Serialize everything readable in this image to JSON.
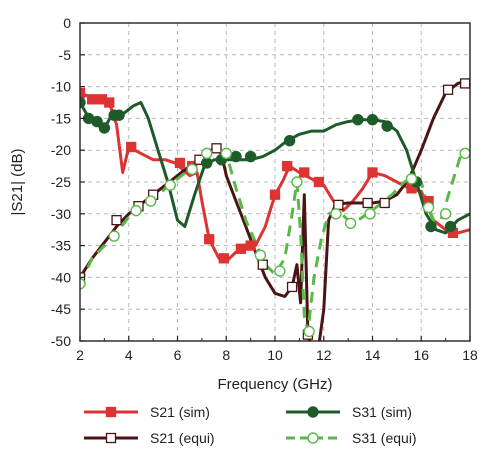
{
  "chart_data": {
    "type": "line",
    "title": "",
    "xlabel": "Frequency (GHz)",
    "ylabel": "|S21| (dB)",
    "xlim": [
      2,
      18
    ],
    "ylim": [
      -50,
      0
    ],
    "xticks": [
      2,
      4,
      6,
      8,
      10,
      12,
      14,
      16,
      18
    ],
    "yticks": [
      0,
      -5,
      -10,
      -15,
      -20,
      -25,
      -30,
      -35,
      -40,
      -45,
      -50
    ],
    "grid": true,
    "legend_position": "bottom",
    "series": [
      {
        "name": "S21 (sim)",
        "color": "#dd3333",
        "line": "solid",
        "marker": "square-filled",
        "points": [
          [
            2,
            -11
          ],
          [
            2.4,
            -11.6
          ],
          [
            2.8,
            -12
          ],
          [
            3.2,
            -12.5
          ],
          [
            3.5,
            -16
          ],
          [
            3.75,
            -23.5
          ],
          [
            4,
            -19.5
          ],
          [
            4.5,
            -20.5
          ],
          [
            5,
            -21.5
          ],
          [
            5.5,
            -21.5
          ],
          [
            5.9,
            -22
          ],
          [
            6.2,
            -23
          ],
          [
            6.5,
            -24
          ],
          [
            6.8,
            -23.5
          ],
          [
            7.0,
            -28
          ],
          [
            7.3,
            -34
          ],
          [
            7.7,
            -37
          ],
          [
            8.0,
            -37.5
          ],
          [
            8.4,
            -36
          ],
          [
            8.8,
            -35.5
          ],
          [
            9.2,
            -35
          ],
          [
            9.6,
            -32
          ],
          [
            10.0,
            -27
          ],
          [
            10.3,
            -25
          ],
          [
            10.6,
            -22.5
          ],
          [
            11.0,
            -23.5
          ],
          [
            11.5,
            -24.5
          ],
          [
            12.0,
            -25.5
          ],
          [
            12.4,
            -28
          ],
          [
            12.8,
            -29.5
          ],
          [
            13.2,
            -28
          ],
          [
            13.6,
            -26
          ],
          [
            14.0,
            -23.5
          ],
          [
            14.5,
            -24
          ],
          [
            15.0,
            -25
          ],
          [
            15.5,
            -26
          ],
          [
            16.0,
            -26.5
          ],
          [
            16.5,
            -31
          ],
          [
            17.0,
            -32.5
          ],
          [
            17.5,
            -33
          ],
          [
            18,
            -32.5
          ]
        ],
        "marker_points": [
          [
            2,
            -11
          ],
          [
            2.5,
            -12
          ],
          [
            2.9,
            -12
          ],
          [
            3.2,
            -12.5
          ],
          [
            4.1,
            -19.5
          ],
          [
            6.1,
            -22
          ],
          [
            6.6,
            -22.5
          ],
          [
            7.3,
            -34
          ],
          [
            7.9,
            -37
          ],
          [
            8.6,
            -35.5
          ],
          [
            9.0,
            -35
          ],
          [
            10.0,
            -27
          ],
          [
            10.5,
            -22.5
          ],
          [
            11.2,
            -23.5
          ],
          [
            11.8,
            -25
          ],
          [
            14.0,
            -23.5
          ],
          [
            15.6,
            -26
          ],
          [
            16.3,
            -28
          ],
          [
            17.3,
            -33
          ]
        ]
      },
      {
        "name": "S21 (equi)",
        "color": "#4a1414",
        "line": "solid",
        "marker": "square-open",
        "points": [
          [
            2,
            -40
          ],
          [
            2.5,
            -37
          ],
          [
            3,
            -34.5
          ],
          [
            3.5,
            -32
          ],
          [
            4,
            -30
          ],
          [
            4.5,
            -28.5
          ],
          [
            5,
            -27
          ],
          [
            5.5,
            -25.5
          ],
          [
            6,
            -24
          ],
          [
            6.5,
            -22.5
          ],
          [
            7,
            -21
          ],
          [
            7.5,
            -19.7
          ],
          [
            7.8,
            -20.5
          ],
          [
            8.0,
            -24
          ],
          [
            8.4,
            -28
          ],
          [
            8.8,
            -32
          ],
          [
            9.2,
            -36
          ],
          [
            9.6,
            -40
          ],
          [
            10.0,
            -42.5
          ],
          [
            10.4,
            -43
          ],
          [
            10.7,
            -41.5
          ],
          [
            10.9,
            -38
          ],
          [
            11.05,
            -44
          ],
          [
            11.2,
            -27
          ],
          [
            11.35,
            -49
          ],
          [
            11.5,
            -51
          ],
          [
            11.75,
            -52
          ],
          [
            12.0,
            -45
          ],
          [
            12.2,
            -31
          ],
          [
            12.5,
            -28.5
          ],
          [
            13,
            -28.3
          ],
          [
            13.5,
            -28.3
          ],
          [
            14,
            -28.3
          ],
          [
            14.5,
            -28
          ],
          [
            15,
            -27
          ],
          [
            15.5,
            -24.5
          ],
          [
            16,
            -20
          ],
          [
            16.5,
            -15
          ],
          [
            17,
            -11
          ],
          [
            17.5,
            -9.5
          ],
          [
            18,
            -9
          ]
        ],
        "marker_points": [
          [
            2,
            -40
          ],
          [
            3.5,
            -31
          ],
          [
            4.4,
            -28.8
          ],
          [
            5,
            -27
          ],
          [
            6.9,
            -21.5
          ],
          [
            7.6,
            -19.7
          ],
          [
            9.5,
            -38
          ],
          [
            10.7,
            -41.5
          ],
          [
            11.35,
            -49
          ],
          [
            12.6,
            -28.6
          ],
          [
            13.8,
            -28.3
          ],
          [
            14.5,
            -28.3
          ],
          [
            17.1,
            -10.5
          ],
          [
            17.8,
            -9.5
          ]
        ]
      },
      {
        "name": "S31 (sim)",
        "color": "#1f5a2a",
        "line": "solid",
        "marker": "circle-filled",
        "points": [
          [
            2,
            -12.5
          ],
          [
            2.3,
            -14.5
          ],
          [
            2.7,
            -15.5
          ],
          [
            3.0,
            -16.5
          ],
          [
            3.3,
            -14.5
          ],
          [
            3.7,
            -14.5
          ],
          [
            4.2,
            -13
          ],
          [
            4.5,
            -12.5
          ],
          [
            4.8,
            -15
          ],
          [
            5.2,
            -20
          ],
          [
            5.6,
            -25
          ],
          [
            6.0,
            -31
          ],
          [
            6.3,
            -32
          ],
          [
            6.7,
            -27
          ],
          [
            7.1,
            -22.5
          ],
          [
            7.5,
            -21.5
          ],
          [
            8.0,
            -21.5
          ],
          [
            8.5,
            -21.5
          ],
          [
            9.0,
            -21.5
          ],
          [
            9.5,
            -21
          ],
          [
            10.0,
            -20
          ],
          [
            10.5,
            -18.5
          ],
          [
            11.0,
            -17.5
          ],
          [
            11.5,
            -17
          ],
          [
            12.0,
            -17
          ],
          [
            12.5,
            -16
          ],
          [
            13.0,
            -15.5
          ],
          [
            13.5,
            -15.2
          ],
          [
            14.0,
            -15.2
          ],
          [
            14.5,
            -15.5
          ],
          [
            15.0,
            -17
          ],
          [
            15.4,
            -20
          ],
          [
            15.8,
            -25
          ],
          [
            16.2,
            -30
          ],
          [
            16.6,
            -32.5
          ],
          [
            17.0,
            -33
          ],
          [
            17.5,
            -31
          ],
          [
            18,
            -30
          ]
        ],
        "marker_points": [
          [
            2,
            -12.5
          ],
          [
            2.35,
            -15
          ],
          [
            2.7,
            -15.5
          ],
          [
            3.0,
            -16.5
          ],
          [
            3.4,
            -14.5
          ],
          [
            3.6,
            -14.5
          ],
          [
            7.2,
            -22
          ],
          [
            7.8,
            -21.5
          ],
          [
            8.4,
            -21
          ],
          [
            9.0,
            -21
          ],
          [
            10.6,
            -18.5
          ],
          [
            13.4,
            -15.2
          ],
          [
            14.0,
            -15.2
          ],
          [
            14.6,
            -16.2
          ],
          [
            15.8,
            -25
          ],
          [
            16.4,
            -32
          ],
          [
            17.2,
            -32
          ]
        ]
      },
      {
        "name": "S31 (equi)",
        "color": "#5ab84a",
        "line": "dashed",
        "marker": "circle-open",
        "points": [
          [
            2,
            -41
          ],
          [
            2.5,
            -37
          ],
          [
            3,
            -35
          ],
          [
            3.5,
            -33
          ],
          [
            4,
            -30.5
          ],
          [
            4.5,
            -29
          ],
          [
            5,
            -28
          ],
          [
            5.5,
            -26
          ],
          [
            6,
            -24.5
          ],
          [
            6.5,
            -23
          ],
          [
            7.0,
            -21
          ],
          [
            7.5,
            -20
          ],
          [
            8.0,
            -20.5
          ],
          [
            8.4,
            -26
          ],
          [
            8.8,
            -31
          ],
          [
            9.2,
            -34.5
          ],
          [
            9.6,
            -38
          ],
          [
            10.0,
            -39.5
          ],
          [
            10.4,
            -37
          ],
          [
            10.7,
            -30
          ],
          [
            10.9,
            -25
          ],
          [
            11.05,
            -33
          ],
          [
            11.2,
            -46
          ],
          [
            11.35,
            -48.5
          ],
          [
            11.6,
            -40
          ],
          [
            11.9,
            -34
          ],
          [
            12.2,
            -30
          ],
          [
            12.6,
            -29.5
          ],
          [
            13.0,
            -31
          ],
          [
            13.4,
            -31
          ],
          [
            13.8,
            -30
          ],
          [
            14.3,
            -28.5
          ],
          [
            14.8,
            -27
          ],
          [
            15.3,
            -25
          ],
          [
            15.6,
            -24.5
          ],
          [
            16.0,
            -25
          ],
          [
            16.2,
            -28
          ],
          [
            16.5,
            -31
          ],
          [
            16.8,
            -31
          ],
          [
            17.2,
            -26
          ],
          [
            17.6,
            -21
          ],
          [
            17.8,
            -20
          ]
        ],
        "marker_points": [
          [
            2,
            -41
          ],
          [
            3.4,
            -33.5
          ],
          [
            4.3,
            -29.5
          ],
          [
            4.9,
            -28
          ],
          [
            5.7,
            -25.5
          ],
          [
            6.6,
            -23
          ],
          [
            7.2,
            -20.5
          ],
          [
            8.0,
            -20.5
          ],
          [
            9.4,
            -36.5
          ],
          [
            10.2,
            -39
          ],
          [
            10.9,
            -25
          ],
          [
            11.4,
            -48.5
          ],
          [
            12.5,
            -30
          ],
          [
            13.1,
            -31.5
          ],
          [
            13.9,
            -30
          ],
          [
            15.6,
            -24.5
          ],
          [
            16.3,
            -29
          ],
          [
            17.0,
            -30
          ],
          [
            17.8,
            -20.5
          ]
        ]
      }
    ]
  }
}
